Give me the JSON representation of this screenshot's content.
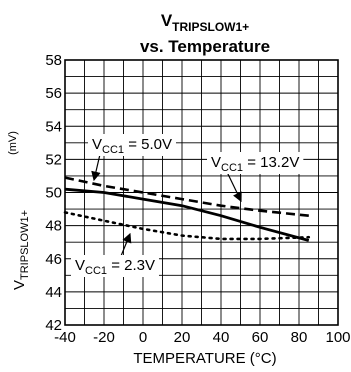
{
  "chart_data": {
    "type": "line",
    "title_main": "V",
    "title_sub": "TRIPSLOW1+",
    "title_line2": "vs. Temperature",
    "xlabel": "TEMPERATURE (°C)",
    "ylabel_main": "V",
    "ylabel_sub": "TRIPSLOW1+",
    "ylabel_unit": "(mV)",
    "xlim": [
      -40,
      100
    ],
    "ylim": [
      42,
      58
    ],
    "xticks": [
      "-40",
      "-20",
      "0",
      "20",
      "40",
      "60",
      "80",
      "100"
    ],
    "yticks": [
      "42",
      "44",
      "46",
      "48",
      "50",
      "52",
      "54",
      "56",
      "58"
    ],
    "grid": true,
    "series": [
      {
        "name_main": "V",
        "name_sub": "CC1",
        "name_value": " = 13.2V",
        "style": "dashed",
        "x": [
          -40,
          -20,
          0,
          20,
          40,
          60,
          85
        ],
        "y": [
          50.9,
          50.4,
          50.0,
          49.6,
          49.2,
          48.9,
          48.6
        ]
      },
      {
        "name_main": "V",
        "name_sub": "CC1",
        "name_value": " = 5.0V",
        "style": "solid",
        "x": [
          -40,
          -20,
          0,
          20,
          40,
          60,
          85
        ],
        "y": [
          50.2,
          50.0,
          49.6,
          49.2,
          48.6,
          47.9,
          47.1
        ]
      },
      {
        "name_main": "V",
        "name_sub": "CC1",
        "name_value": " = 2.3V",
        "style": "dotted",
        "x": [
          -40,
          -20,
          0,
          20,
          40,
          60,
          85
        ],
        "y": [
          48.8,
          48.3,
          47.8,
          47.4,
          47.2,
          47.2,
          47.3
        ]
      }
    ]
  }
}
